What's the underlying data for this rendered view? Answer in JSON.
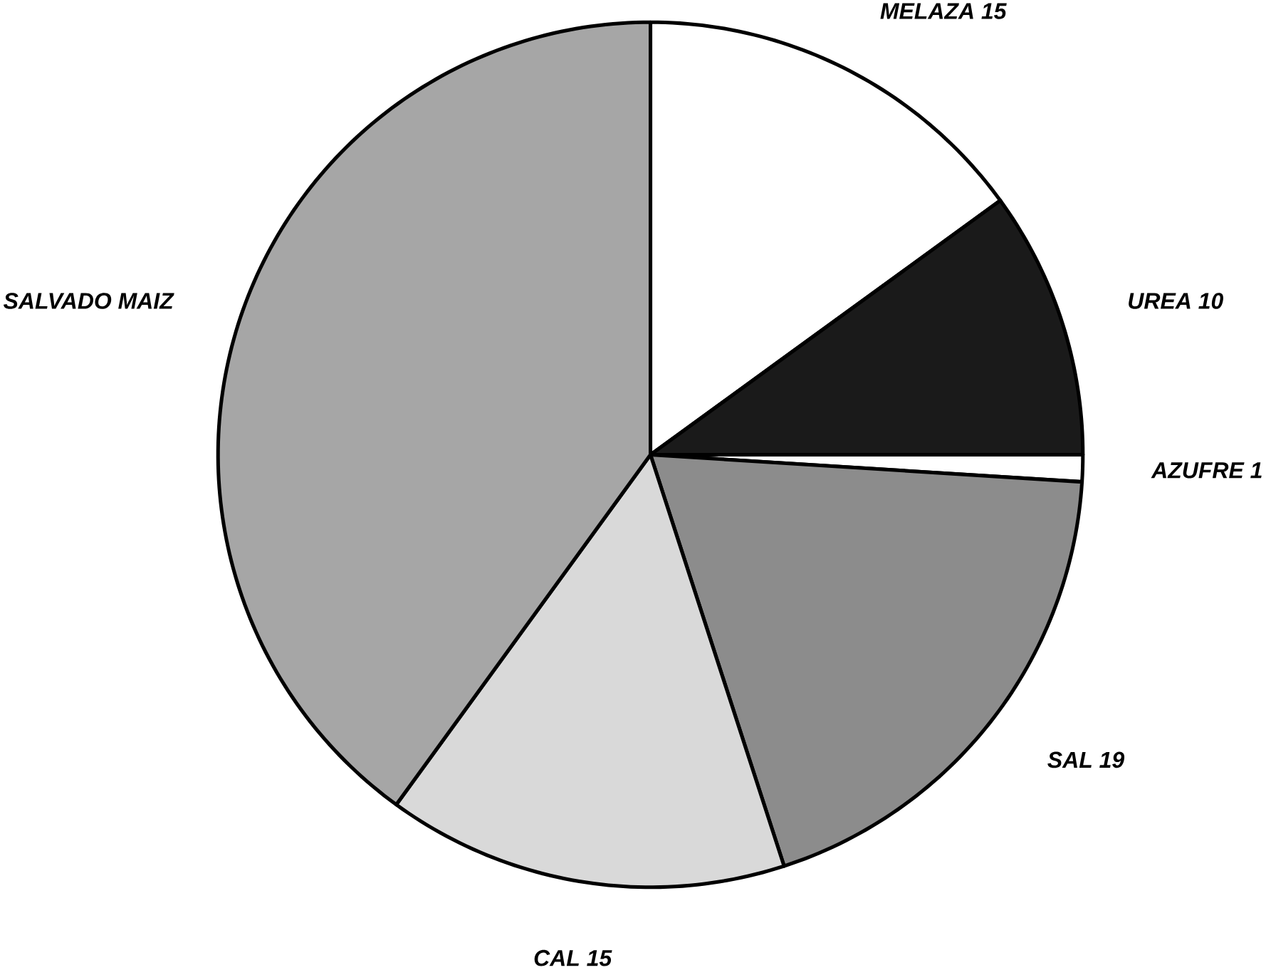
{
  "chart_data": {
    "type": "pie",
    "categories": [
      "MELAZA",
      "UREA",
      "AZUFRE",
      "SAL",
      "CAL",
      "SALVADO MAIZ"
    ],
    "values": [
      15,
      10,
      1,
      19,
      15,
      40
    ],
    "value_labels": [
      "15",
      "10",
      "1",
      "19",
      "15",
      null
    ],
    "colors": [
      "#ffffff",
      "#1a1a1a",
      "#ffffff",
      "#8c8c8c",
      "#d9d9d9",
      "#a6a6a6"
    ]
  }
}
